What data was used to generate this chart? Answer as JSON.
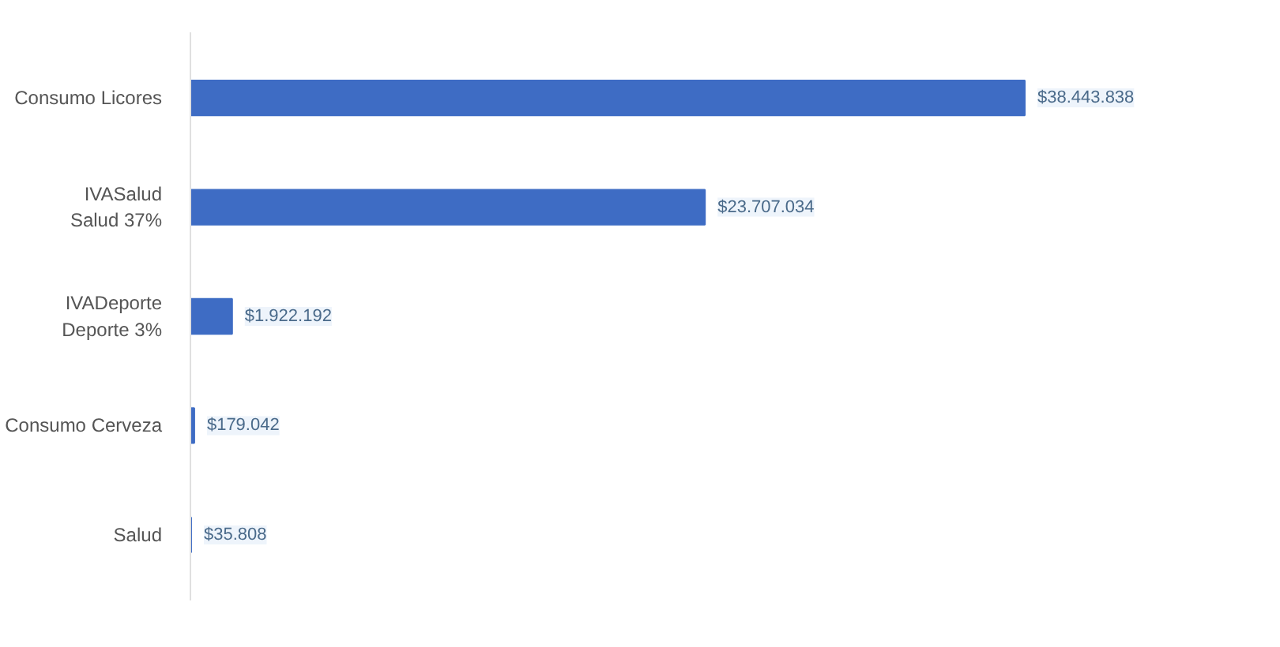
{
  "chart_data": {
    "type": "bar",
    "orientation": "horizontal",
    "categories": [
      "Consumo Licores",
      "IVASalud\nSalud 37%",
      "IVADeporte\nDeporte 3%",
      "Consumo Cerveza",
      "Salud"
    ],
    "values": [
      38443838,
      23707034,
      1922192,
      179042,
      35808
    ],
    "color": "#3e6cc4",
    "value_labels": [
      "$38.443.838",
      "$23.707.034",
      "$1.922.192",
      "$179.042",
      "$35.808"
    ],
    "grid": false
  }
}
